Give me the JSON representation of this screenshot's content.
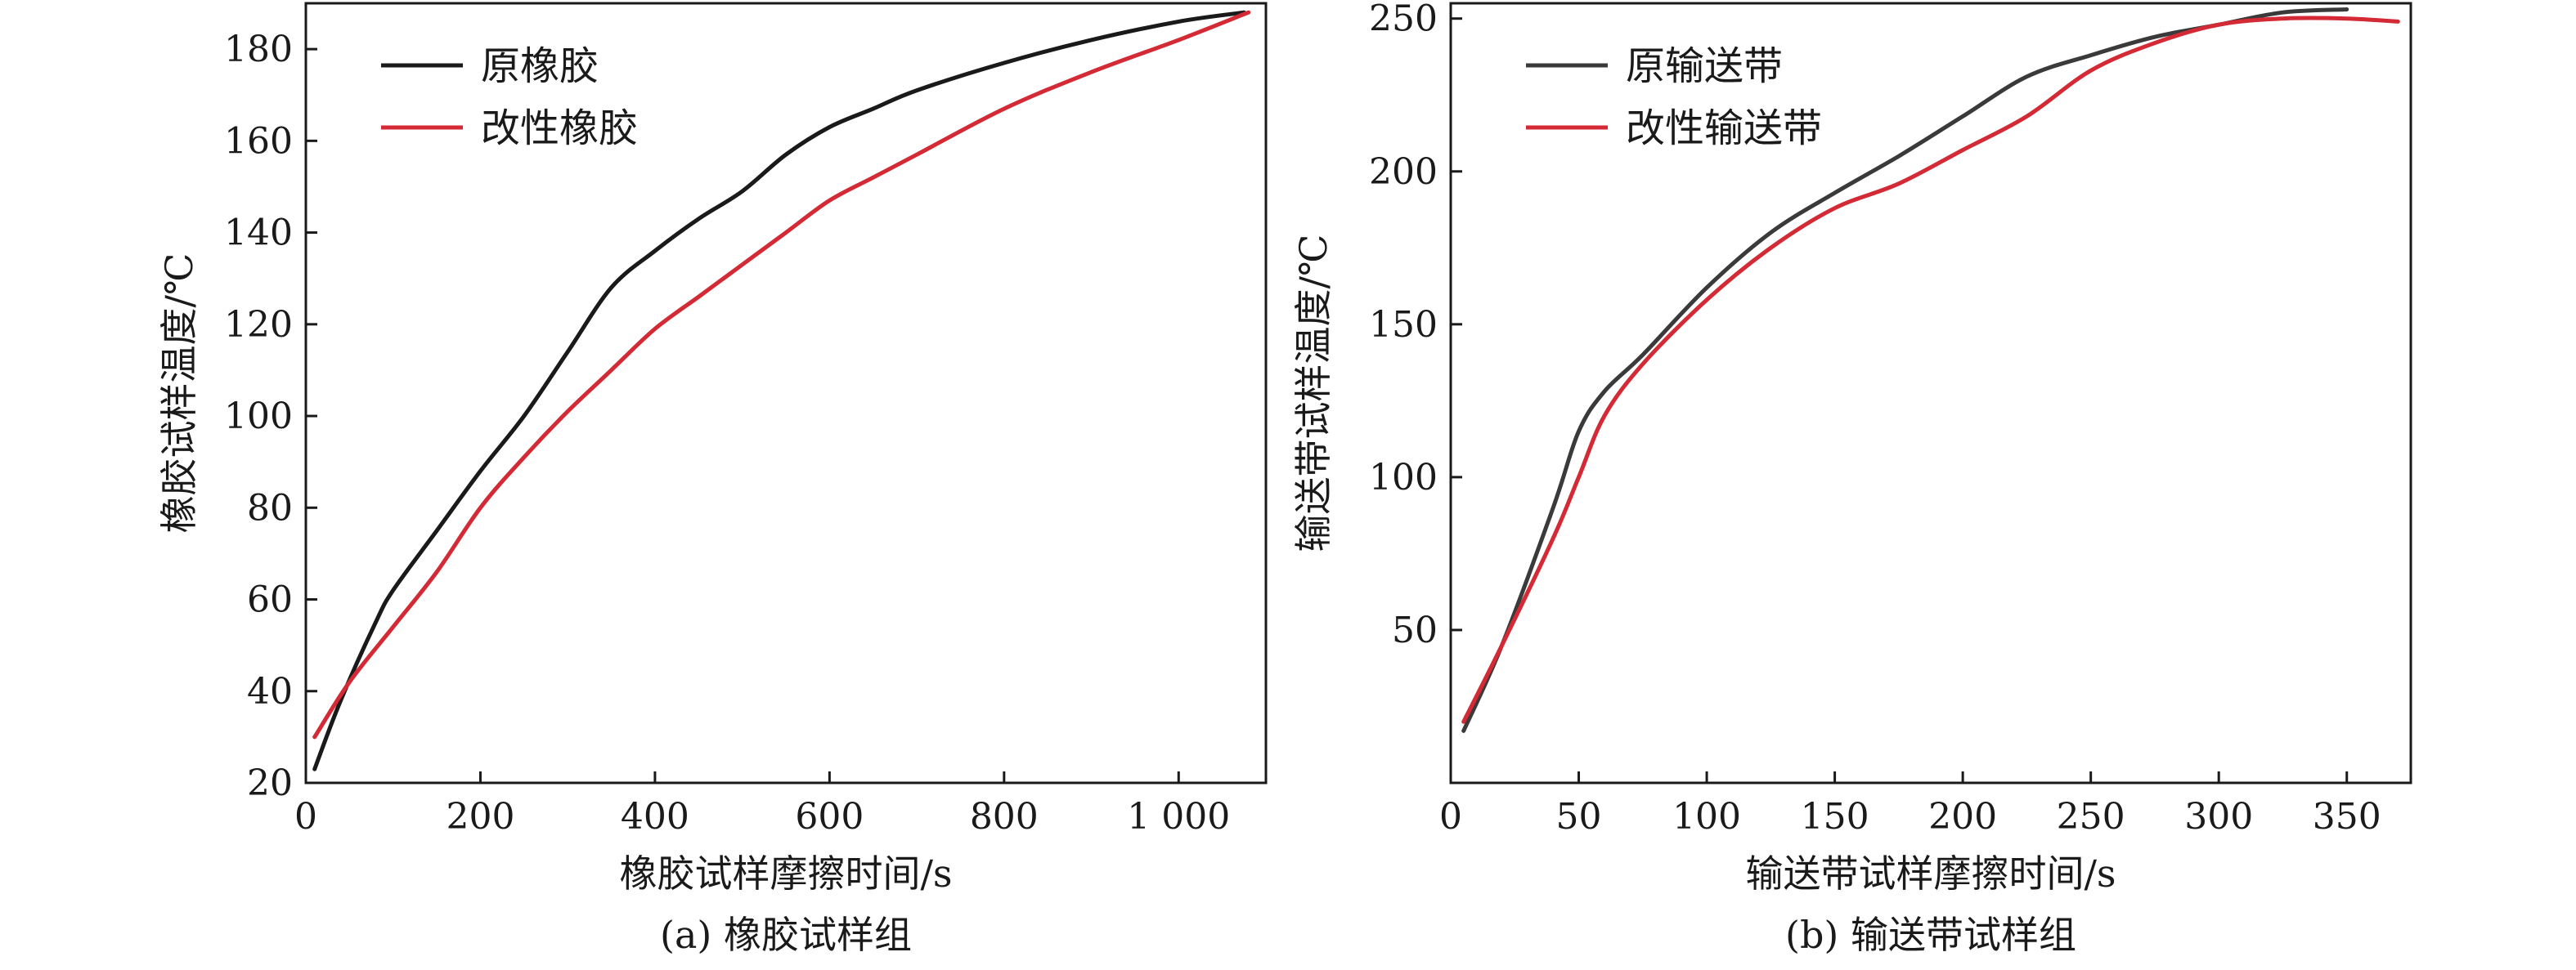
{
  "chart_data": [
    {
      "type": "line",
      "caption": "(a) 橡胶试样组",
      "xlabel": "橡胶试样摩擦时间/s",
      "ylabel": "橡胶试样温度/℃",
      "xlim": [
        0,
        1100
      ],
      "ylim": [
        20,
        190
      ],
      "xticks": [
        0,
        200,
        400,
        600,
        800,
        1000
      ],
      "xtick_labels": [
        "0",
        "200",
        "400",
        "600",
        "800",
        "1 000"
      ],
      "yticks": [
        20,
        40,
        60,
        80,
        100,
        120,
        140,
        160,
        180
      ],
      "ytick_labels": [
        "20",
        "40",
        "60",
        "80",
        "100",
        "120",
        "140",
        "160",
        "180"
      ],
      "grid": false,
      "legend": "top-left",
      "series": [
        {
          "name": "原橡胶",
          "color": "#1a1a1a",
          "x": [
            10,
            40,
            80,
            100,
            150,
            200,
            250,
            300,
            350,
            400,
            450,
            500,
            550,
            600,
            650,
            700,
            800,
            900,
            1000,
            1075
          ],
          "y": [
            23,
            38,
            55,
            62,
            75,
            88,
            100,
            114,
            128,
            136,
            143,
            149,
            157,
            163,
            167,
            171,
            177,
            182,
            186,
            188
          ]
        },
        {
          "name": "改性橡胶",
          "color": "#d32a35",
          "x": [
            10,
            50,
            100,
            150,
            200,
            250,
            300,
            350,
            400,
            450,
            500,
            550,
            600,
            650,
            700,
            800,
            900,
            1000,
            1080
          ],
          "y": [
            30,
            42,
            54,
            66,
            80,
            91,
            101,
            110,
            119,
            126,
            133,
            140,
            147,
            152,
            157,
            167,
            175,
            182,
            188
          ]
        }
      ]
    },
    {
      "type": "line",
      "caption": "(b) 输送带试样组",
      "xlabel": "输送带试样摩擦时间/s",
      "ylabel": "输送带试样温度/℃",
      "xlim": [
        0,
        375
      ],
      "ylim": [
        0,
        255
      ],
      "xticks": [
        0,
        50,
        100,
        150,
        200,
        250,
        300,
        350
      ],
      "xtick_labels": [
        "0",
        "50",
        "100",
        "150",
        "200",
        "250",
        "300",
        "350"
      ],
      "yticks": [
        50,
        100,
        150,
        200,
        250
      ],
      "ytick_labels": [
        "50",
        "100",
        "150",
        "200",
        "250"
      ],
      "grid": false,
      "legend": "top-left",
      "series": [
        {
          "name": "原输送带",
          "color": "#3a3a3a",
          "x": [
            5,
            20,
            40,
            50,
            60,
            75,
            100,
            125,
            150,
            175,
            200,
            225,
            250,
            275,
            300,
            325,
            350
          ],
          "y": [
            17,
            45,
            90,
            115,
            128,
            140,
            162,
            180,
            193,
            205,
            218,
            231,
            238,
            244,
            248,
            252,
            253
          ]
        },
        {
          "name": "改性输送带",
          "color": "#d32a35",
          "x": [
            5,
            20,
            40,
            50,
            60,
            75,
            100,
            125,
            150,
            175,
            200,
            225,
            250,
            275,
            300,
            325,
            350,
            370
          ],
          "y": [
            20,
            45,
            80,
            100,
            120,
            137,
            158,
            175,
            188,
            196,
            207,
            218,
            233,
            242,
            248,
            250,
            250,
            249
          ]
        }
      ]
    }
  ]
}
